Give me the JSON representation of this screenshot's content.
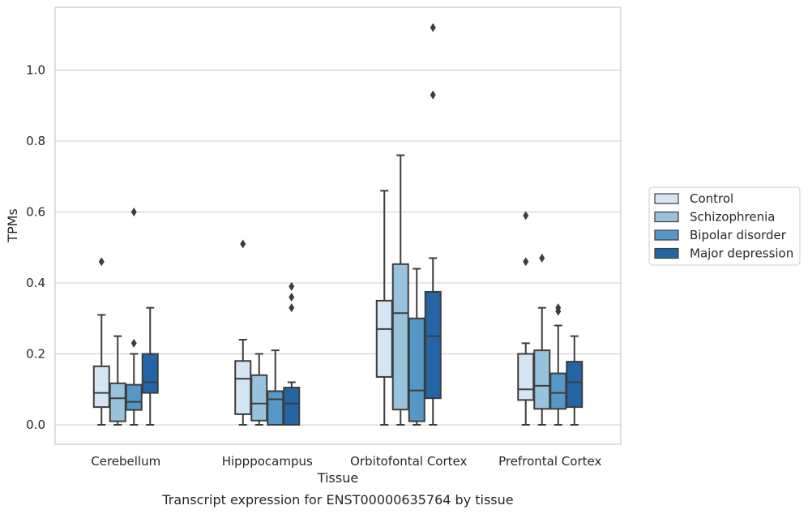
{
  "chart_data": {
    "type": "box",
    "caption": "Transcript expression for ENST00000635764 by tissue",
    "xlabel": "Tissue",
    "ylabel": "TPMs",
    "ylim": [
      -0.05,
      1.18
    ],
    "yticks": [
      "0.0",
      "0.2",
      "0.4",
      "0.6",
      "0.8",
      "1.0"
    ],
    "grid": "horizontal",
    "legend_placement": "right",
    "categories": [
      "Cerebellum",
      "Hipppocampus",
      "Orbitofontal Cortex",
      "Prefrontal Cortex"
    ],
    "series": [
      {
        "name": "Control",
        "color": "#d6e5f3",
        "boxes": [
          {
            "min": 0.0,
            "q1": 0.05,
            "median": 0.09,
            "q3": 0.165,
            "max": 0.31,
            "outliers": [
              0.46
            ]
          },
          {
            "min": 0.0,
            "q1": 0.03,
            "median": 0.13,
            "q3": 0.18,
            "max": 0.24,
            "outliers": [
              0.51
            ]
          },
          {
            "min": 0.0,
            "q1": 0.135,
            "median": 0.27,
            "q3": 0.35,
            "max": 0.66,
            "outliers": []
          },
          {
            "min": 0.0,
            "q1": 0.07,
            "median": 0.1,
            "q3": 0.2,
            "max": 0.23,
            "outliers": [
              0.46,
              0.59
            ]
          }
        ]
      },
      {
        "name": "Schizophrenia",
        "color": "#99c3dd",
        "boxes": [
          {
            "min": 0.0,
            "q1": 0.01,
            "median": 0.075,
            "q3": 0.117,
            "max": 0.25,
            "outliers": []
          },
          {
            "min": 0.0,
            "q1": 0.012,
            "median": 0.06,
            "q3": 0.14,
            "max": 0.2,
            "outliers": []
          },
          {
            "min": 0.0,
            "q1": 0.043,
            "median": 0.315,
            "q3": 0.453,
            "max": 0.76,
            "outliers": []
          },
          {
            "min": 0.0,
            "q1": 0.045,
            "median": 0.11,
            "q3": 0.21,
            "max": 0.33,
            "outliers": [
              0.47
            ]
          }
        ]
      },
      {
        "name": "Bipolar disorder",
        "color": "#5597c6",
        "boxes": [
          {
            "min": 0.0,
            "q1": 0.042,
            "median": 0.065,
            "q3": 0.113,
            "max": 0.2,
            "outliers": [
              0.23,
              0.6
            ]
          },
          {
            "min": 0.0,
            "q1": 0.0,
            "median": 0.072,
            "q3": 0.095,
            "max": 0.21,
            "outliers": []
          },
          {
            "min": 0.0,
            "q1": 0.01,
            "median": 0.097,
            "q3": 0.3,
            "max": 0.44,
            "outliers": []
          },
          {
            "min": 0.0,
            "q1": 0.045,
            "median": 0.09,
            "q3": 0.145,
            "max": 0.28,
            "outliers": [
              0.32,
              0.33
            ]
          }
        ]
      },
      {
        "name": "Major depression",
        "color": "#2565a6",
        "boxes": [
          {
            "min": 0.0,
            "q1": 0.09,
            "median": 0.12,
            "q3": 0.2,
            "max": 0.33,
            "outliers": []
          },
          {
            "min": 0.0,
            "q1": 0.0,
            "median": 0.06,
            "q3": 0.105,
            "max": 0.12,
            "outliers": [
              0.33,
              0.36,
              0.39
            ]
          },
          {
            "min": 0.0,
            "q1": 0.075,
            "median": 0.25,
            "q3": 0.375,
            "max": 0.47,
            "outliers": [
              0.93,
              1.12
            ]
          },
          {
            "min": 0.0,
            "q1": 0.05,
            "median": 0.12,
            "q3": 0.178,
            "max": 0.25,
            "outliers": []
          }
        ]
      }
    ]
  }
}
